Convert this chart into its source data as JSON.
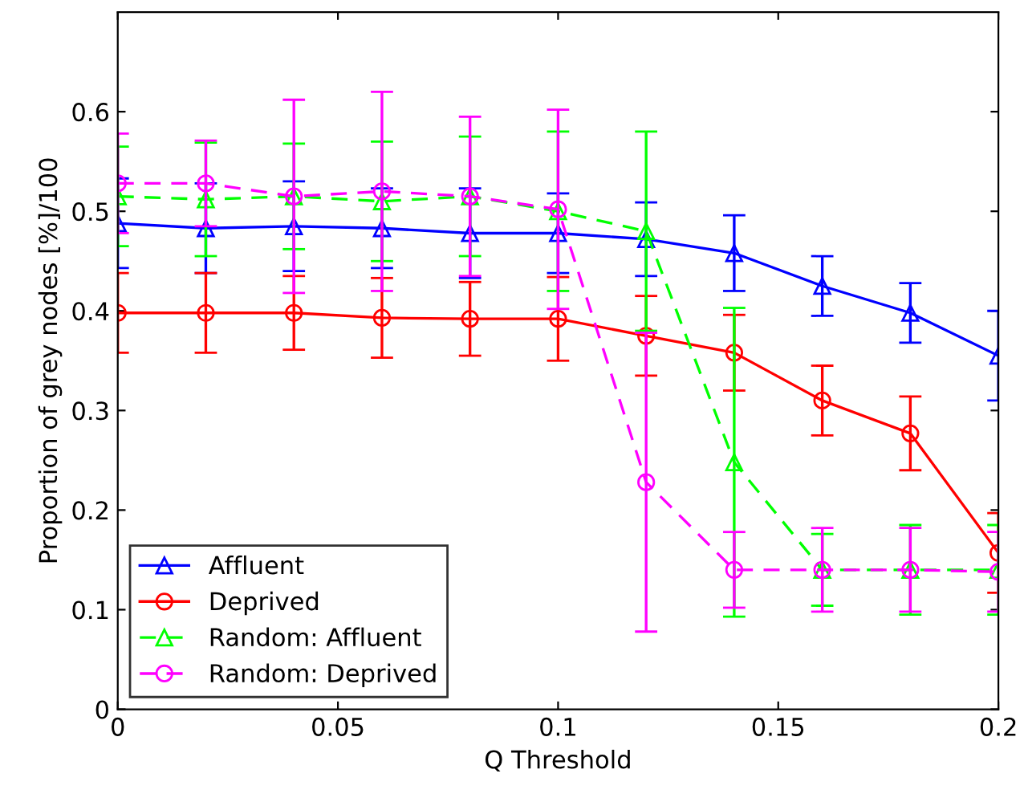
{
  "chart_data": {
    "type": "line",
    "xlabel": "Q Threshold",
    "ylabel": "Proportion of grey nodes [%]/100",
    "x": [
      0,
      0.02,
      0.04,
      0.06,
      0.08,
      0.1,
      0.12,
      0.14,
      0.16,
      0.18,
      0.2
    ],
    "xlim": [
      0,
      0.2
    ],
    "xticks": [
      0,
      0.05,
      0.1,
      0.15,
      0.2
    ],
    "ylim": [
      0,
      0.7
    ],
    "yticks": [
      0,
      0.1,
      0.2,
      0.3,
      0.4,
      0.5,
      0.6
    ],
    "grid": false,
    "legend": "bottom left",
    "series": [
      {
        "name": "Affluent",
        "color": "#0000ff",
        "marker": "triangle",
        "line_style": "solid",
        "values": [
          0.488,
          0.483,
          0.485,
          0.483,
          0.478,
          0.478,
          0.472,
          0.458,
          0.425,
          0.398,
          0.355
        ],
        "errors": [
          0.045,
          0.045,
          0.045,
          0.04,
          0.045,
          0.04,
          0.037,
          0.038,
          0.03,
          0.03,
          0.045
        ]
      },
      {
        "name": "Deprived",
        "color": "#ff0000",
        "marker": "circle",
        "line_style": "solid",
        "values": [
          0.398,
          0.398,
          0.398,
          0.393,
          0.392,
          0.392,
          0.375,
          0.358,
          0.31,
          0.277,
          0.157
        ],
        "errors": [
          0.04,
          0.04,
          0.037,
          0.04,
          0.037,
          0.042,
          0.04,
          0.038,
          0.035,
          0.037,
          0.04
        ]
      },
      {
        "name": "Random: Affluent",
        "color": "#00ff00",
        "marker": "triangle",
        "line_style": "dashed",
        "values": [
          0.515,
          0.512,
          0.515,
          0.51,
          0.515,
          0.5,
          0.48,
          0.248,
          0.14,
          0.14,
          0.14
        ],
        "errors": [
          0.05,
          0.057,
          0.053,
          0.06,
          0.06,
          0.08,
          0.1,
          0.155,
          0.036,
          0.045,
          0.045
        ]
      },
      {
        "name": "Random: Deprived",
        "color": "#ff00ff",
        "marker": "circle",
        "line_style": "dashed",
        "values": [
          0.528,
          0.528,
          0.515,
          0.52,
          0.515,
          0.502,
          0.228,
          0.14,
          0.14,
          0.14,
          0.138
        ],
        "errors": [
          0.05,
          0.043,
          0.097,
          0.1,
          0.08,
          0.1,
          0.15,
          0.038,
          0.042,
          0.042,
          0.04
        ]
      }
    ]
  }
}
